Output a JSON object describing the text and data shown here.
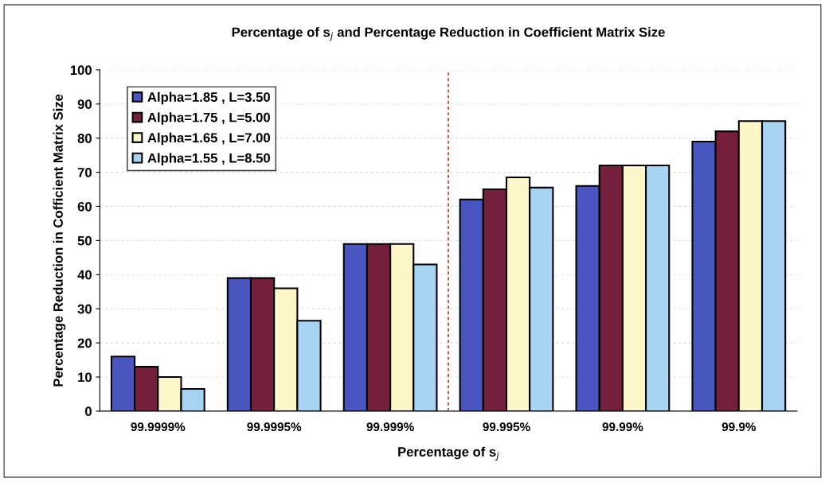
{
  "chart_data": {
    "type": "bar",
    "title": "Percentage of s$_{j}$ and Percentage Reduction in Coefficient Matrix Size",
    "xlabel": "Percentage of s$_{j}$",
    "ylabel": "Percentage Reduction in Cofficient Matrix Size",
    "categories": [
      "99.9999%",
      "99.9995%",
      "99.999%",
      "99.995%",
      "99.99%",
      "99.9%"
    ],
    "series": [
      {
        "name": "Alpha=1.85 , L=3.50",
        "color": "#4a56c0",
        "values": [
          16,
          39,
          49,
          62,
          66,
          79
        ]
      },
      {
        "name": "Alpha=1.75 , L=5.00",
        "color": "#74203c",
        "values": [
          13,
          39,
          49,
          65,
          72,
          82
        ]
      },
      {
        "name": "Alpha=1.65 , L=7.00",
        "color": "#fbf7c8",
        "values": [
          10,
          36,
          49,
          68.5,
          72,
          85
        ]
      },
      {
        "name": "Alpha=1.55 , L=8.50",
        "color": "#a8d4f4",
        "values": [
          6.5,
          26.5,
          43,
          65.5,
          72,
          85
        ]
      }
    ],
    "ylim": [
      0,
      100
    ],
    "yticks": [
      0,
      10,
      20,
      30,
      40,
      50,
      60,
      70,
      80,
      90,
      100
    ],
    "grid": "y",
    "legend": "top left"
  }
}
